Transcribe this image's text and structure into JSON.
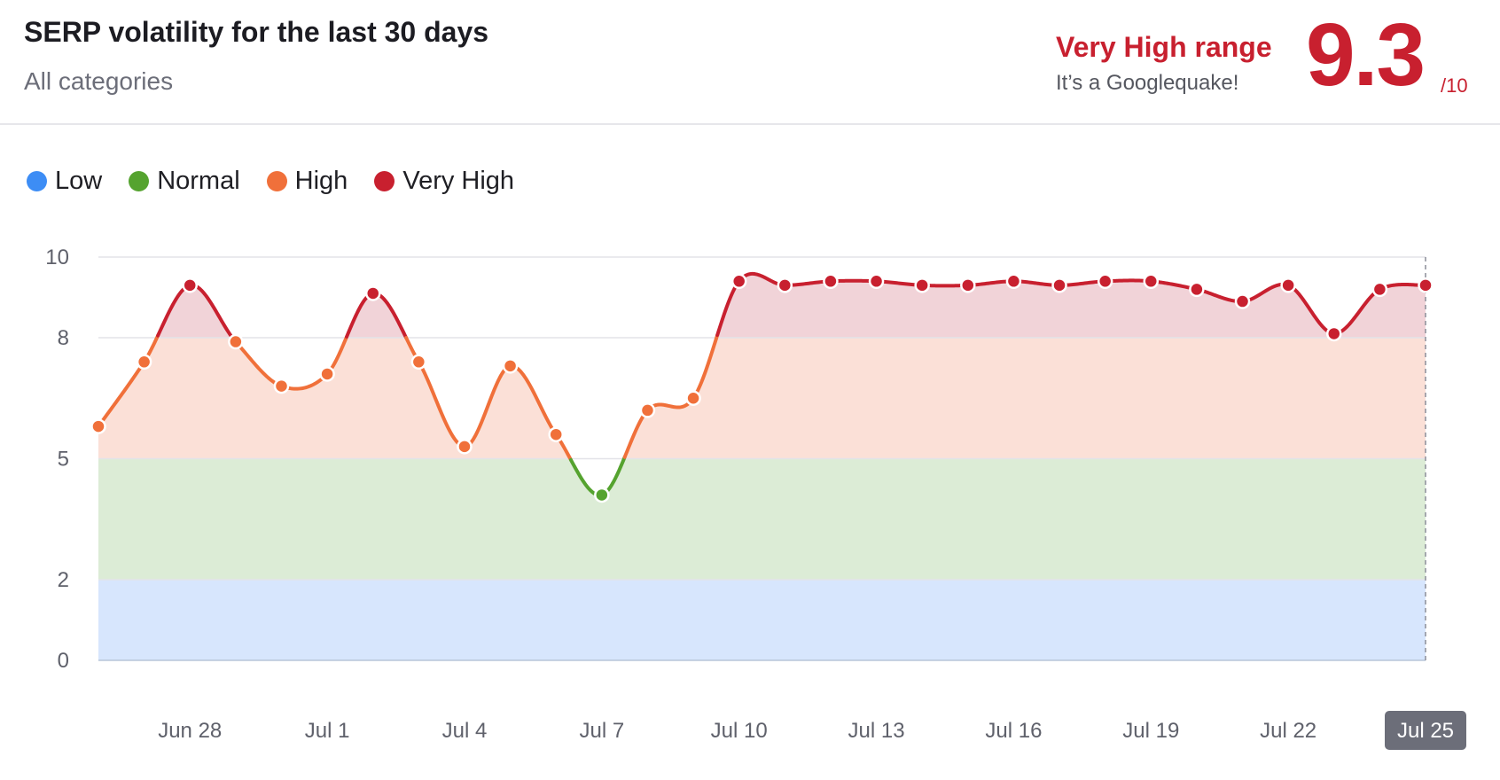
{
  "header": {
    "title": "SERP volatility for the last 30 days",
    "subtitle": "All categories",
    "range_label": "Very High range",
    "range_note": "It’s a Googlequake!",
    "score": "9.3",
    "score_max": "/10"
  },
  "legend": [
    {
      "label": "Low",
      "color": "#3d8df5"
    },
    {
      "label": "Normal",
      "color": "#55a32f"
    },
    {
      "label": "High",
      "color": "#f0703a"
    },
    {
      "label": "Very High",
      "color": "#c8202f"
    }
  ],
  "colors": {
    "low_band": "#d7e6fd",
    "normal_band": "#dcecd6",
    "high_band": "#fbe0d7",
    "very_high_band": "#f1d3d8",
    "low": "#3d8df5",
    "normal": "#55a32f",
    "high": "#f0703a",
    "very_high": "#c8202f",
    "grid": "#e3e3e8",
    "highlight_label_bg": "#6c6e79"
  },
  "chart_data": {
    "type": "line",
    "title": "SERP volatility for the last 30 days",
    "ylim": [
      0,
      10
    ],
    "y_ticks": [
      0,
      2,
      5,
      8,
      10
    ],
    "bands": [
      {
        "name": "Low",
        "from": 0,
        "to": 2
      },
      {
        "name": "Normal",
        "from": 2,
        "to": 5
      },
      {
        "name": "High",
        "from": 5,
        "to": 8
      },
      {
        "name": "Very High",
        "from": 8,
        "to": 10
      }
    ],
    "x_ticks": [
      {
        "index": 2,
        "label": "Jun 28"
      },
      {
        "index": 5,
        "label": "Jul 1"
      },
      {
        "index": 8,
        "label": "Jul 4"
      },
      {
        "index": 11,
        "label": "Jul 7"
      },
      {
        "index": 14,
        "label": "Jul 10"
      },
      {
        "index": 17,
        "label": "Jul 13"
      },
      {
        "index": 20,
        "label": "Jul 16"
      },
      {
        "index": 23,
        "label": "Jul 19"
      },
      {
        "index": 26,
        "label": "Jul 22"
      },
      {
        "index": 29,
        "label": "Jul 25"
      }
    ],
    "highlighted_x": "Jul 25",
    "values": [
      5.8,
      7.4,
      9.3,
      7.9,
      6.8,
      7.1,
      9.1,
      7.4,
      5.3,
      7.3,
      5.6,
      4.1,
      6.2,
      6.5,
      9.4,
      9.3,
      9.4,
      9.4,
      9.3,
      9.3,
      9.4,
      9.3,
      9.4,
      9.4,
      9.2,
      8.9,
      9.3,
      8.1,
      9.2,
      9.3
    ]
  }
}
